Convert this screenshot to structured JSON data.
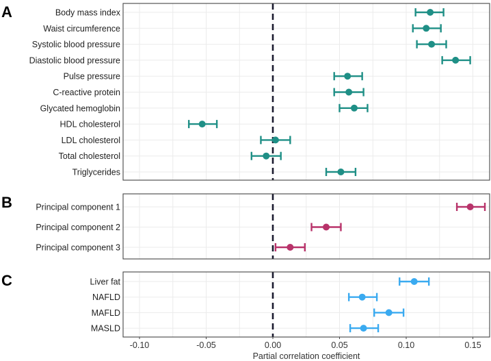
{
  "chart_data": {
    "type": "scatter",
    "subtype": "forest-plot",
    "xlabel": "Partial correlation coefficient",
    "xlim": [
      -0.112,
      0.162
    ],
    "xticks": [
      -0.1,
      -0.05,
      0.0,
      0.05,
      0.1,
      0.15
    ],
    "xtick_labels": [
      "-0.10",
      "-0.05",
      "0.00",
      "0.05",
      "0.10",
      "0.15"
    ],
    "reference_line": 0,
    "grid": true,
    "panels": [
      {
        "label": "A",
        "color": "#1f8f86",
        "rows": [
          {
            "name": "Body mass index",
            "est": 0.118,
            "lo": 0.107,
            "hi": 0.128
          },
          {
            "name": "Waist circumference",
            "est": 0.115,
            "lo": 0.105,
            "hi": 0.126
          },
          {
            "name": "Systolic blood pressure",
            "est": 0.119,
            "lo": 0.108,
            "hi": 0.13
          },
          {
            "name": "Diastolic blood pressure",
            "est": 0.137,
            "lo": 0.127,
            "hi": 0.148
          },
          {
            "name": "Pulse pressure",
            "est": 0.056,
            "lo": 0.046,
            "hi": 0.067
          },
          {
            "name": "C-reactive protein",
            "est": 0.057,
            "lo": 0.046,
            "hi": 0.068
          },
          {
            "name": "Glycated hemoglobin",
            "est": 0.061,
            "lo": 0.05,
            "hi": 0.071
          },
          {
            "name": "HDL cholesterol",
            "est": -0.053,
            "lo": -0.063,
            "hi": -0.042
          },
          {
            "name": "LDL cholesterol",
            "est": 0.002,
            "lo": -0.009,
            "hi": 0.013
          },
          {
            "name": "Total cholesterol",
            "est": -0.005,
            "lo": -0.016,
            "hi": 0.006
          },
          {
            "name": "Triglycerides",
            "est": 0.051,
            "lo": 0.04,
            "hi": 0.062
          }
        ]
      },
      {
        "label": "B",
        "color": "#b8336a",
        "rows": [
          {
            "name": "Principal component 1",
            "est": 0.148,
            "lo": 0.138,
            "hi": 0.159
          },
          {
            "name": "Principal component 2",
            "est": 0.04,
            "lo": 0.029,
            "hi": 0.051
          },
          {
            "name": "Principal component 3",
            "est": 0.013,
            "lo": 0.002,
            "hi": 0.024
          }
        ]
      },
      {
        "label": "C",
        "color": "#3aaaf0",
        "rows": [
          {
            "name": "Liver fat",
            "est": 0.106,
            "lo": 0.095,
            "hi": 0.117
          },
          {
            "name": "NAFLD",
            "est": 0.067,
            "lo": 0.057,
            "hi": 0.078
          },
          {
            "name": "MAFLD",
            "est": 0.087,
            "lo": 0.076,
            "hi": 0.098
          },
          {
            "name": "MASLD",
            "est": 0.068,
            "lo": 0.058,
            "hi": 0.079
          }
        ]
      }
    ]
  }
}
